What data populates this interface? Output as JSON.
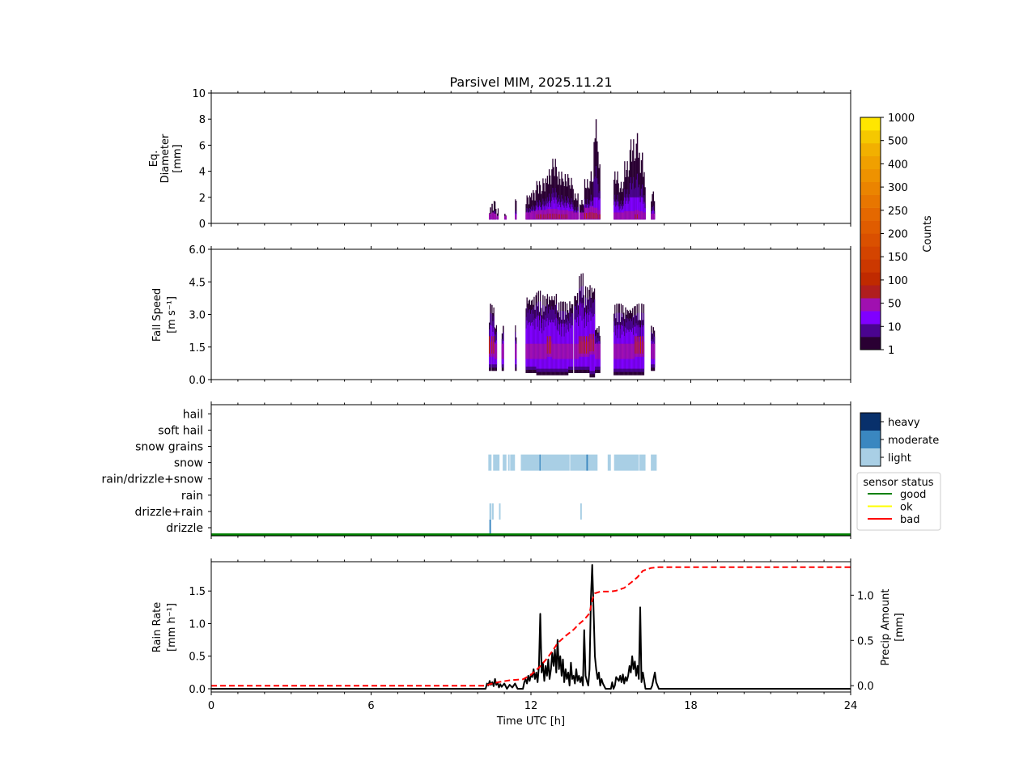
{
  "chart_data": [
    {
      "type": "heatmap",
      "panel": "diameter",
      "title": "Parsivel MIM, 2025.11.21",
      "xlabel": "",
      "ylabel_lines": [
        "Eq.",
        "Diameter",
        "[mm]"
      ],
      "xlim": [
        0,
        24
      ],
      "ylim": [
        0,
        10
      ],
      "yticks": [
        0,
        2,
        4,
        6,
        8,
        10
      ],
      "ytick_labels": [
        "0",
        "2",
        "4",
        "6",
        "8",
        "10"
      ],
      "colorbar": {
        "label": "Counts",
        "ticks": [
          "1",
          "10",
          "50",
          "100",
          "150",
          "200",
          "250",
          "300",
          "400",
          "500",
          "1000"
        ],
        "colors": [
          "#2a0033",
          "#4a0490",
          "#8000ff",
          "#a010b0",
          "#b01e1e",
          "#c02a00",
          "#cc3800",
          "#d44400",
          "#da5000",
          "#e05c00",
          "#e46800",
          "#e87600",
          "#eb8400",
          "#ee9200",
          "#f0a000",
          "#f2b000",
          "#f5c800",
          "#ffe600"
        ]
      },
      "columns": [
        {
          "t_start": 10.42,
          "t_end": 10.5,
          "d_max": 1.3,
          "core_d": 0.5
        },
        {
          "t_start": 10.52,
          "t_end": 10.6,
          "d_max": 1.6,
          "core_d": 0.6
        },
        {
          "t_start": 10.6,
          "t_end": 10.7,
          "d_max": 1.8,
          "core_d": 0.5
        },
        {
          "t_start": 10.72,
          "t_end": 10.78,
          "d_max": 1.2,
          "core_d": 0.3
        },
        {
          "t_start": 11.0,
          "t_end": 11.08,
          "d_max": 0.8,
          "core_d": 0.3
        },
        {
          "t_start": 11.4,
          "t_end": 11.46,
          "d_max": 1.9,
          "core_d": 0.4
        },
        {
          "t_start": 11.8,
          "t_end": 12.0,
          "d_max": 2.2,
          "core_d": 0.6
        },
        {
          "t_start": 12.0,
          "t_end": 12.2,
          "d_max": 2.6,
          "core_d": 0.7
        },
        {
          "t_start": 12.2,
          "t_end": 12.4,
          "d_max": 3.3,
          "core_d": 0.8
        },
        {
          "t_start": 12.4,
          "t_end": 12.6,
          "d_max": 3.5,
          "core_d": 0.8
        },
        {
          "t_start": 12.6,
          "t_end": 12.8,
          "d_max": 4.2,
          "core_d": 0.9
        },
        {
          "t_start": 12.8,
          "t_end": 13.0,
          "d_max": 5.0,
          "core_d": 0.9
        },
        {
          "t_start": 13.0,
          "t_end": 13.2,
          "d_max": 4.0,
          "core_d": 0.8
        },
        {
          "t_start": 13.2,
          "t_end": 13.4,
          "d_max": 3.8,
          "core_d": 0.8
        },
        {
          "t_start": 13.4,
          "t_end": 13.6,
          "d_max": 3.5,
          "core_d": 0.7
        },
        {
          "t_start": 13.6,
          "t_end": 13.78,
          "d_max": 2.3,
          "core_d": 0.6
        },
        {
          "t_start": 13.82,
          "t_end": 14.0,
          "d_max": 1.8,
          "core_d": 0.6
        },
        {
          "t_start": 14.0,
          "t_end": 14.2,
          "d_max": 3.4,
          "core_d": 1.0
        },
        {
          "t_start": 14.2,
          "t_end": 14.35,
          "d_max": 4.0,
          "core_d": 1.1
        },
        {
          "t_start": 14.35,
          "t_end": 14.5,
          "d_max": 8.0,
          "core_d": 1.0
        },
        {
          "t_start": 14.5,
          "t_end": 14.6,
          "d_max": 5.5,
          "core_d": 0.8
        },
        {
          "t_start": 15.1,
          "t_end": 15.3,
          "d_max": 4.0,
          "core_d": 0.6
        },
        {
          "t_start": 15.3,
          "t_end": 15.5,
          "d_max": 3.2,
          "core_d": 0.6
        },
        {
          "t_start": 15.5,
          "t_end": 15.7,
          "d_max": 4.8,
          "core_d": 0.7
        },
        {
          "t_start": 15.7,
          "t_end": 15.9,
          "d_max": 6.5,
          "core_d": 0.7
        },
        {
          "t_start": 15.9,
          "t_end": 16.05,
          "d_max": 7.0,
          "core_d": 0.8
        },
        {
          "t_start": 16.05,
          "t_end": 16.2,
          "d_max": 5.5,
          "core_d": 0.7
        },
        {
          "t_start": 16.2,
          "t_end": 16.3,
          "d_max": 4.0,
          "core_d": 0.6
        },
        {
          "t_start": 16.5,
          "t_end": 16.65,
          "d_max": 2.5,
          "core_d": 0.5
        }
      ]
    },
    {
      "type": "heatmap",
      "panel": "fall_speed",
      "ylabel_lines": [
        "Fall Speed",
        "[m s⁻¹]"
      ],
      "xlim": [
        0,
        24
      ],
      "ylim": [
        0,
        6
      ],
      "yticks": [
        0,
        1.5,
        3,
        4.5,
        6
      ],
      "ytick_labels": [
        "0.0",
        "1.5",
        "3.0",
        "4.5",
        "6.0"
      ],
      "columns": [
        {
          "t_start": 10.42,
          "t_end": 10.5,
          "v_min": 0.4,
          "v_max": 3.5,
          "core_v": 1.4
        },
        {
          "t_start": 10.52,
          "t_end": 10.62,
          "v_min": 0.4,
          "v_max": 3.5,
          "core_v": 1.4
        },
        {
          "t_start": 10.62,
          "t_end": 10.72,
          "v_min": 0.4,
          "v_max": 2.6,
          "core_v": 1.3
        },
        {
          "t_start": 10.9,
          "t_end": 10.98,
          "v_min": 0.4,
          "v_max": 2.5,
          "core_v": 1.3
        },
        {
          "t_start": 11.4,
          "t_end": 11.46,
          "v_min": 0.4,
          "v_max": 2.5,
          "core_v": 1.3
        },
        {
          "t_start": 11.8,
          "t_end": 12.0,
          "v_min": 0.3,
          "v_max": 3.9,
          "core_v": 1.3
        },
        {
          "t_start": 12.0,
          "t_end": 12.2,
          "v_min": 0.3,
          "v_max": 3.9,
          "core_v": 1.3
        },
        {
          "t_start": 12.2,
          "t_end": 12.4,
          "v_min": 0.2,
          "v_max": 4.1,
          "core_v": 1.3
        },
        {
          "t_start": 12.4,
          "t_end": 12.6,
          "v_min": 0.2,
          "v_max": 3.9,
          "core_v": 1.3
        },
        {
          "t_start": 12.6,
          "t_end": 12.8,
          "v_min": 0.2,
          "v_max": 4.0,
          "core_v": 1.4
        },
        {
          "t_start": 12.8,
          "t_end": 13.0,
          "v_min": 0.2,
          "v_max": 4.0,
          "core_v": 1.3
        },
        {
          "t_start": 13.0,
          "t_end": 13.2,
          "v_min": 0.2,
          "v_max": 3.6,
          "core_v": 1.3
        },
        {
          "t_start": 13.2,
          "t_end": 13.4,
          "v_min": 0.2,
          "v_max": 3.6,
          "core_v": 1.3
        },
        {
          "t_start": 13.4,
          "t_end": 13.58,
          "v_min": 0.3,
          "v_max": 3.7,
          "core_v": 1.3
        },
        {
          "t_start": 13.62,
          "t_end": 13.8,
          "v_min": 0.3,
          "v_max": 4.1,
          "core_v": 1.3
        },
        {
          "t_start": 13.8,
          "t_end": 14.0,
          "v_min": 0.3,
          "v_max": 4.9,
          "core_v": 1.4
        },
        {
          "t_start": 14.0,
          "t_end": 14.2,
          "v_min": 0.3,
          "v_max": 4.3,
          "core_v": 1.4
        },
        {
          "t_start": 14.2,
          "t_end": 14.4,
          "v_min": 0.1,
          "v_max": 4.4,
          "core_v": 1.5
        },
        {
          "t_start": 14.4,
          "t_end": 14.6,
          "v_min": 0.3,
          "v_max": 2.5,
          "core_v": 1.3
        },
        {
          "t_start": 15.1,
          "t_end": 15.3,
          "v_min": 0.2,
          "v_max": 3.5,
          "core_v": 1.3
        },
        {
          "t_start": 15.3,
          "t_end": 15.5,
          "v_min": 0.2,
          "v_max": 3.5,
          "core_v": 1.3
        },
        {
          "t_start": 15.5,
          "t_end": 15.7,
          "v_min": 0.2,
          "v_max": 3.4,
          "core_v": 1.3
        },
        {
          "t_start": 15.7,
          "t_end": 15.9,
          "v_min": 0.2,
          "v_max": 3.4,
          "core_v": 1.3
        },
        {
          "t_start": 15.9,
          "t_end": 16.1,
          "v_min": 0.2,
          "v_max": 3.5,
          "core_v": 1.4
        },
        {
          "t_start": 16.1,
          "t_end": 16.25,
          "v_min": 0.2,
          "v_max": 3.5,
          "core_v": 1.4
        },
        {
          "t_start": 16.5,
          "t_end": 16.65,
          "v_min": 0.4,
          "v_max": 2.5,
          "core_v": 1.3
        }
      ]
    },
    {
      "type": "heatmap",
      "panel": "precip_type",
      "categories": [
        "drizzle",
        "drizzle+rain",
        "rain",
        "rain/drizzle+snow",
        "snow",
        "snow grains",
        "soft hail",
        "hail"
      ],
      "xlim": [
        0,
        24
      ],
      "intensity_legend": {
        "levels": [
          "light",
          "moderate",
          "heavy"
        ],
        "colors": [
          "#a9cfe5",
          "#3a87c0",
          "#08306b"
        ]
      },
      "sensor_status_legend": {
        "title": "sensor status",
        "entries": [
          {
            "label": "good",
            "color": "#008000"
          },
          {
            "label": "ok",
            "color": "#ffff00"
          },
          {
            "label": "bad",
            "color": "#ff0000"
          }
        ],
        "status_over_day": "good"
      },
      "events": [
        {
          "category": "snow",
          "t_start": 10.4,
          "t_end": 10.52,
          "level": "light"
        },
        {
          "category": "snow",
          "t_start": 10.58,
          "t_end": 10.82,
          "level": "light"
        },
        {
          "category": "snow",
          "t_start": 10.94,
          "t_end": 11.08,
          "level": "light"
        },
        {
          "category": "snow",
          "t_start": 11.14,
          "t_end": 11.2,
          "level": "light"
        },
        {
          "category": "snow",
          "t_start": 11.22,
          "t_end": 11.4,
          "level": "light"
        },
        {
          "category": "snow",
          "t_start": 11.62,
          "t_end": 12.32,
          "level": "light"
        },
        {
          "category": "snow",
          "t_start": 12.32,
          "t_end": 12.36,
          "level": "moderate"
        },
        {
          "category": "snow",
          "t_start": 12.36,
          "t_end": 13.45,
          "level": "light"
        },
        {
          "category": "snow",
          "t_start": 13.47,
          "t_end": 14.08,
          "level": "light"
        },
        {
          "category": "snow",
          "t_start": 14.08,
          "t_end": 14.14,
          "level": "moderate"
        },
        {
          "category": "snow",
          "t_start": 14.14,
          "t_end": 14.5,
          "level": "light"
        },
        {
          "category": "snow",
          "t_start": 14.88,
          "t_end": 15.0,
          "level": "light"
        },
        {
          "category": "snow",
          "t_start": 15.12,
          "t_end": 16.05,
          "level": "light"
        },
        {
          "category": "snow",
          "t_start": 16.07,
          "t_end": 16.3,
          "level": "light"
        },
        {
          "category": "snow",
          "t_start": 16.5,
          "t_end": 16.72,
          "level": "light"
        },
        {
          "category": "drizzle+rain",
          "t_start": 10.44,
          "t_end": 10.52,
          "level": "light"
        },
        {
          "category": "drizzle+rain",
          "t_start": 10.54,
          "t_end": 10.6,
          "level": "light"
        },
        {
          "category": "drizzle+rain",
          "t_start": 10.8,
          "t_end": 10.86,
          "level": "light"
        },
        {
          "category": "drizzle+rain",
          "t_start": 13.85,
          "t_end": 13.91,
          "level": "light"
        },
        {
          "category": "drizzle",
          "t_start": 10.44,
          "t_end": 10.5,
          "level": "moderate"
        }
      ]
    },
    {
      "type": "line",
      "panel": "rain_rate",
      "xlabel": "Time UTC [h]",
      "ylabel_lines": [
        "Rain Rate",
        "[mm h⁻¹]"
      ],
      "y2label_lines": [
        "Precip Amount",
        "[mm]"
      ],
      "xlim": [
        0,
        24
      ],
      "xticks": [
        0,
        6,
        12,
        18,
        24
      ],
      "xtick_labels": [
        "0",
        "6",
        "12",
        "18",
        "24"
      ],
      "ylim": [
        -0.05,
        1.95
      ],
      "yticks": [
        0,
        0.5,
        1.0,
        1.5
      ],
      "ytick_labels": [
        "0.0",
        "0.5",
        "1.0",
        "1.5"
      ],
      "y2lim": [
        -0.07,
        1.37
      ],
      "y2ticks": [
        0,
        0.5,
        1.0
      ],
      "y2tick_labels": [
        "0.0",
        "0.5",
        "1.0"
      ],
      "series": [
        {
          "name": "Rain Rate",
          "axis": "left",
          "color": "#000000",
          "style": "solid",
          "x": [
            0,
            10.3,
            10.35,
            10.4,
            10.45,
            10.5,
            10.55,
            10.6,
            10.65,
            10.7,
            10.75,
            10.8,
            10.85,
            10.9,
            11.0,
            11.1,
            11.2,
            11.3,
            11.4,
            11.5,
            11.55,
            11.7,
            11.75,
            11.8,
            11.85,
            11.9,
            11.95,
            12.0,
            12.05,
            12.1,
            12.15,
            12.2,
            12.25,
            12.3,
            12.35,
            12.4,
            12.45,
            12.5,
            12.55,
            12.6,
            12.65,
            12.7,
            12.75,
            12.8,
            12.85,
            12.9,
            12.95,
            13.0,
            13.05,
            13.1,
            13.15,
            13.2,
            13.25,
            13.3,
            13.35,
            13.4,
            13.45,
            13.5,
            13.55,
            13.6,
            13.65,
            13.7,
            13.75,
            13.8,
            13.85,
            13.9,
            13.95,
            14.0,
            14.05,
            14.1,
            14.15,
            14.2,
            14.25,
            14.3,
            14.35,
            14.4,
            14.45,
            14.5,
            14.55,
            14.6,
            14.65,
            14.7,
            14.8,
            15.0,
            15.05,
            15.1,
            15.15,
            15.2,
            15.3,
            15.35,
            15.4,
            15.45,
            15.5,
            15.55,
            15.6,
            15.65,
            15.7,
            15.75,
            15.8,
            15.85,
            15.9,
            15.95,
            16.0,
            16.05,
            16.1,
            16.15,
            16.2,
            16.3,
            16.5,
            16.55,
            16.6,
            16.65,
            16.7,
            16.8,
            24
          ],
          "y": [
            0,
            0,
            0.08,
            0.05,
            0.12,
            0.06,
            0.1,
            0.04,
            0.15,
            0.06,
            0.09,
            0.02,
            0.07,
            0.03,
            0.08,
            0.0,
            0.06,
            0.02,
            0.08,
            0.0,
            0.0,
            0.0,
            0.1,
            0.15,
            0.08,
            0.2,
            0.12,
            0.22,
            0.18,
            0.3,
            0.15,
            0.25,
            0.1,
            0.35,
            1.15,
            0.25,
            0.4,
            0.12,
            0.35,
            0.2,
            0.45,
            0.15,
            0.3,
            0.55,
            0.35,
            0.6,
            0.25,
            0.75,
            0.3,
            0.5,
            0.2,
            0.45,
            0.1,
            0.3,
            0.15,
            0.25,
            0.05,
            0.4,
            0.15,
            0.2,
            0.08,
            0.3,
            0.12,
            0.2,
            0.1,
            0.18,
            0.05,
            0.9,
            0.2,
            0.12,
            0.05,
            0.3,
            1.4,
            1.9,
            1.2,
            0.5,
            0.3,
            0.15,
            0.25,
            0.05,
            0.15,
            0.08,
            0.0,
            0.0,
            0.1,
            0.0,
            0.05,
            0.18,
            0.12,
            0.2,
            0.1,
            0.22,
            0.08,
            0.18,
            0.12,
            0.2,
            0.35,
            0.25,
            0.5,
            0.3,
            0.42,
            0.2,
            0.35,
            0.15,
            1.25,
            0.1,
            0.25,
            0.0,
            0.0,
            0.05,
            0.15,
            0.25,
            0.1,
            0.0,
            0.0
          ],
          "line_width": 2
        },
        {
          "name": "Precip Amount",
          "axis": "right",
          "color": "#ff0000",
          "style": "dashed",
          "x": [
            0,
            10.3,
            10.5,
            10.8,
            11.2,
            11.7,
            12.0,
            12.3,
            12.6,
            12.8,
            13.0,
            13.3,
            13.6,
            13.8,
            14.0,
            14.2,
            14.3,
            14.4,
            14.6,
            15.0,
            15.2,
            15.5,
            15.8,
            16.0,
            16.2,
            16.5,
            16.8,
            17.0,
            24
          ],
          "y": [
            0,
            0,
            0.02,
            0.04,
            0.06,
            0.07,
            0.12,
            0.2,
            0.3,
            0.38,
            0.47,
            0.55,
            0.62,
            0.68,
            0.73,
            0.8,
            0.95,
            1.02,
            1.04,
            1.04,
            1.05,
            1.08,
            1.15,
            1.2,
            1.27,
            1.3,
            1.31,
            1.31,
            1.31
          ]
        }
      ]
    }
  ]
}
